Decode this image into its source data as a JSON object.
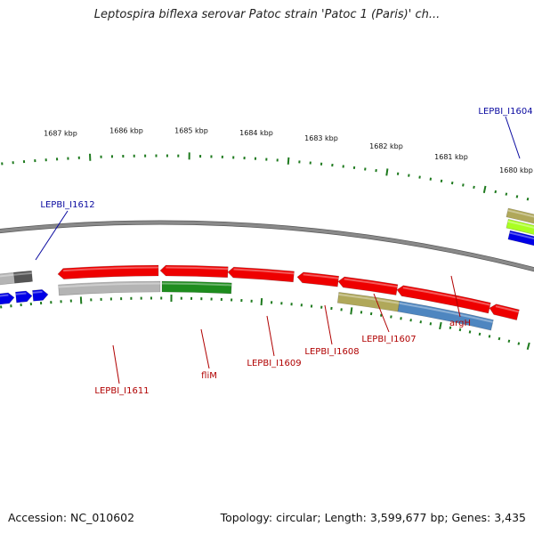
{
  "title": "Leptospira biflexa serovar Patoc strain 'Patoc 1 (Paris)' ch...",
  "footer": {
    "accession": "Accession: NC_010602",
    "stats": "Topology: circular; Length: 3,599,677 bp; Genes: 3,435"
  },
  "colors": {
    "backbone": "#8a8a8a",
    "tick": "#1e7a1e",
    "label_blue": "#0a0aa0",
    "label_red": "#b00000",
    "red_gene": "#ee0000",
    "green_gene": "#1e8c1e",
    "gray_gene": "#b4b4b4",
    "olive_gene": "#b0a85a",
    "steel_gene": "#4e86c0",
    "blue_gene": "#0000e6"
  },
  "kbp_labels": [
    "1680 kbp",
    "1681 kbp",
    "1682 kbp",
    "1683 kbp",
    "1684 kbp",
    "1685 kbp",
    "1686 kbp",
    "1687 kbp"
  ],
  "gene_labels": [
    {
      "text": "LEPBI_I1604",
      "color": "blue"
    },
    {
      "text": "LEPBI_I1612",
      "color": "blue"
    },
    {
      "text": "argH",
      "color": "red"
    },
    {
      "text": "LEPBI_I1607",
      "color": "red"
    },
    {
      "text": "LEPBI_I1608",
      "color": "red"
    },
    {
      "text": "LEPBI_I1609",
      "color": "red"
    },
    {
      "text": "fliM",
      "color": "red"
    },
    {
      "text": "LEPBI_I1611",
      "color": "red"
    }
  ]
}
